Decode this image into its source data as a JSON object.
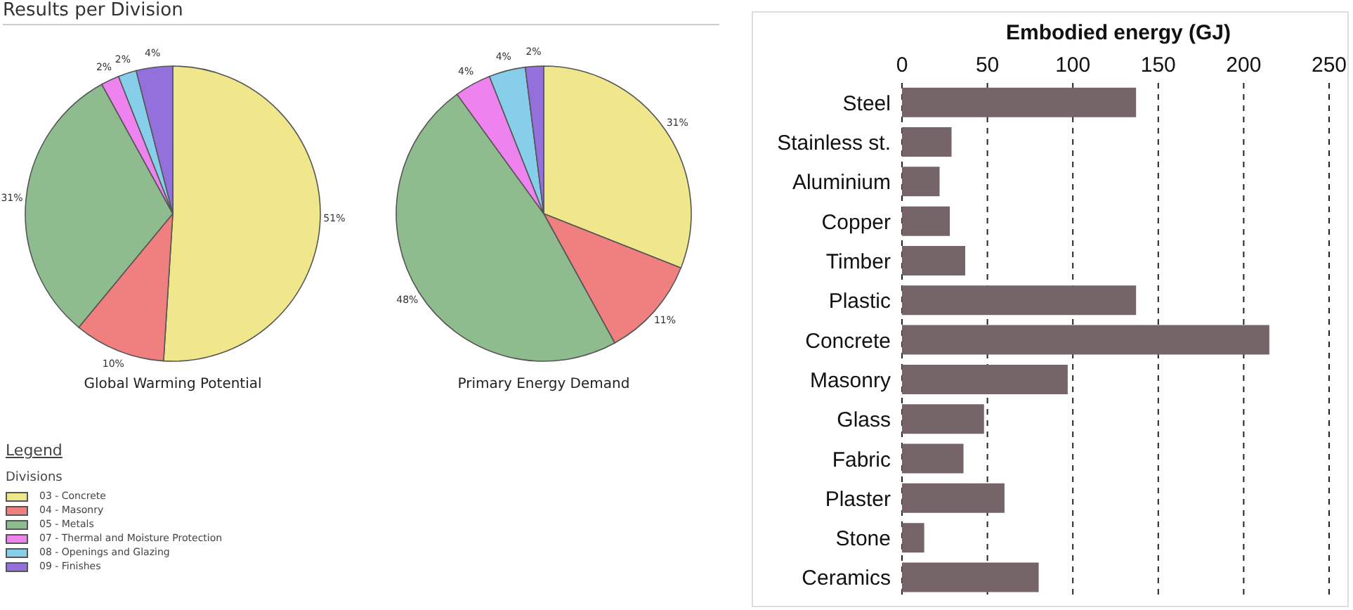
{
  "chart_data": [
    {
      "type": "pie",
      "annotations": [
        "Results per Division",
        "Legend"
      ],
      "legend": "bottom left",
      "legend_title": "Divisions",
      "categories": [
        "03 - Concrete",
        "04 - Masonry",
        "05 - Metals",
        "07 - Thermal and Moisture Protection",
        "08 - Openings and Glazing",
        "09 - Finishes"
      ],
      "colors": [
        "#f0e68c",
        "#f08080",
        "#8fbc8f",
        "#ee82ee",
        "#87ceeb",
        "#9370db"
      ],
      "series": [
        {
          "name": "Global Warming Potential",
          "values": [
            51,
            10,
            31,
            2,
            2,
            4
          ],
          "value_labels": [
            "51%",
            "10%",
            "31%",
            "2%",
            "2%",
            "4%"
          ]
        },
        {
          "name": "Primary Energy Demand",
          "values": [
            31,
            11,
            48,
            4,
            4,
            2
          ],
          "value_labels": [
            "31%",
            "11%",
            "48%",
            "4%",
            "4%",
            "2%"
          ]
        }
      ]
    },
    {
      "type": "bar",
      "orientation": "horizontal",
      "xlabel": "Embodied energy (GJ)",
      "categories": [
        "Steel",
        "Stainless st.",
        "Aluminium",
        "Copper",
        "Timber",
        "Plastic",
        "Concrete",
        "Masonry",
        "Glass",
        "Fabric",
        "Plaster",
        "Stone",
        "Ceramics"
      ],
      "values": [
        137,
        29,
        22,
        28,
        37,
        137,
        215,
        97,
        48,
        36,
        60,
        13,
        80
      ],
      "color": "#766568",
      "xlim": [
        0,
        250
      ],
      "xticks": [
        0,
        50,
        100,
        150,
        200,
        250
      ],
      "grid": "x"
    }
  ]
}
